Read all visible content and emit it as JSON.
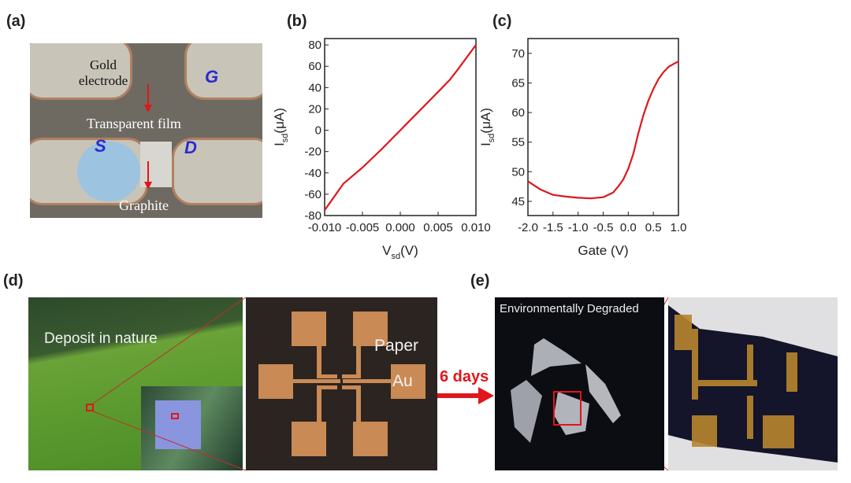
{
  "panel_labels": {
    "a": "(a)",
    "b": "(b)",
    "c": "(c)",
    "d": "(d)",
    "e": "(e)"
  },
  "panel_a": {
    "gold_electrode": "Gold electrode",
    "g": "G",
    "s": "S",
    "d": "D",
    "transparent_film": "Transparent film",
    "graphite": "Graphite"
  },
  "panel_d": {
    "deposit": "Deposit in nature",
    "paper": "Paper",
    "au": "Au"
  },
  "arrow_label": "6 days",
  "panel_e": {
    "degraded": "Environmentally Degraded"
  },
  "colors": {
    "curve": "#e0161b",
    "arrow": "#e0161b",
    "electrode_label": "#2a2ad0"
  },
  "chart_data": [
    {
      "type": "line",
      "panel": "b",
      "xlabel_main": "V",
      "xlabel_sub": "sd",
      "xlabel_unit": "(V)",
      "ylabel_main": "I",
      "ylabel_sub": "sd",
      "ylabel_unit": "(μA)",
      "xlim": [
        -0.01,
        0.01
      ],
      "ylim": [
        -80,
        86
      ],
      "xticks": [
        "-0.010",
        "-0.005",
        "0.000",
        "0.005",
        "0.010"
      ],
      "yticks": [
        "-80",
        "-60",
        "-40",
        "-20",
        "0",
        "20",
        "40",
        "60",
        "80"
      ],
      "x": [
        -0.01,
        -0.0075,
        -0.005,
        -0.0025,
        0,
        0.0025,
        0.005,
        0.0065,
        0.0075,
        0.01
      ],
      "y": [
        -75,
        -50,
        -35,
        -18,
        0,
        18,
        36,
        47,
        56,
        80
      ]
    },
    {
      "type": "line",
      "panel": "c",
      "xlabel": "Gate (V)",
      "ylabel_main": "I",
      "ylabel_sub": "sd",
      "ylabel_unit": "(μA)",
      "xlim": [
        -2,
        1
      ],
      "ylim": [
        42.6,
        72.5
      ],
      "xticks": [
        "-2.0",
        "-1.5",
        "-1.0",
        "-0.5",
        "0.0",
        "0.5",
        "1.0"
      ],
      "yticks": [
        "45",
        "50",
        "55",
        "60",
        "65",
        "70"
      ],
      "x": [
        -2,
        -1.75,
        -1.5,
        -1.25,
        -1,
        -0.75,
        -0.5,
        -0.3,
        -0.2,
        -0.1,
        0,
        0.1,
        0.2,
        0.3,
        0.4,
        0.5,
        0.6,
        0.7,
        0.8,
        0.9,
        1
      ],
      "y": [
        48.4,
        47,
        46.1,
        45.8,
        45.6,
        45.5,
        45.7,
        46.5,
        47.5,
        48.7,
        50.5,
        53,
        56.5,
        59.5,
        62,
        64,
        65.6,
        66.8,
        67.7,
        68.2,
        68.6
      ]
    }
  ]
}
